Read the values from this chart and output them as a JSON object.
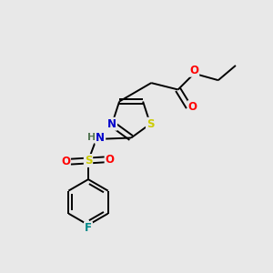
{
  "background_color": "#e8e8e8",
  "bond_color": "#000000",
  "atom_colors": {
    "N": "#0000cc",
    "S_thiazole": "#cccc00",
    "S_sulfonyl": "#cccc00",
    "O": "#ff0000",
    "F": "#008888",
    "H": "#557755"
  },
  "figsize": [
    3.0,
    3.0
  ],
  "dpi": 100,
  "lw": 1.4
}
